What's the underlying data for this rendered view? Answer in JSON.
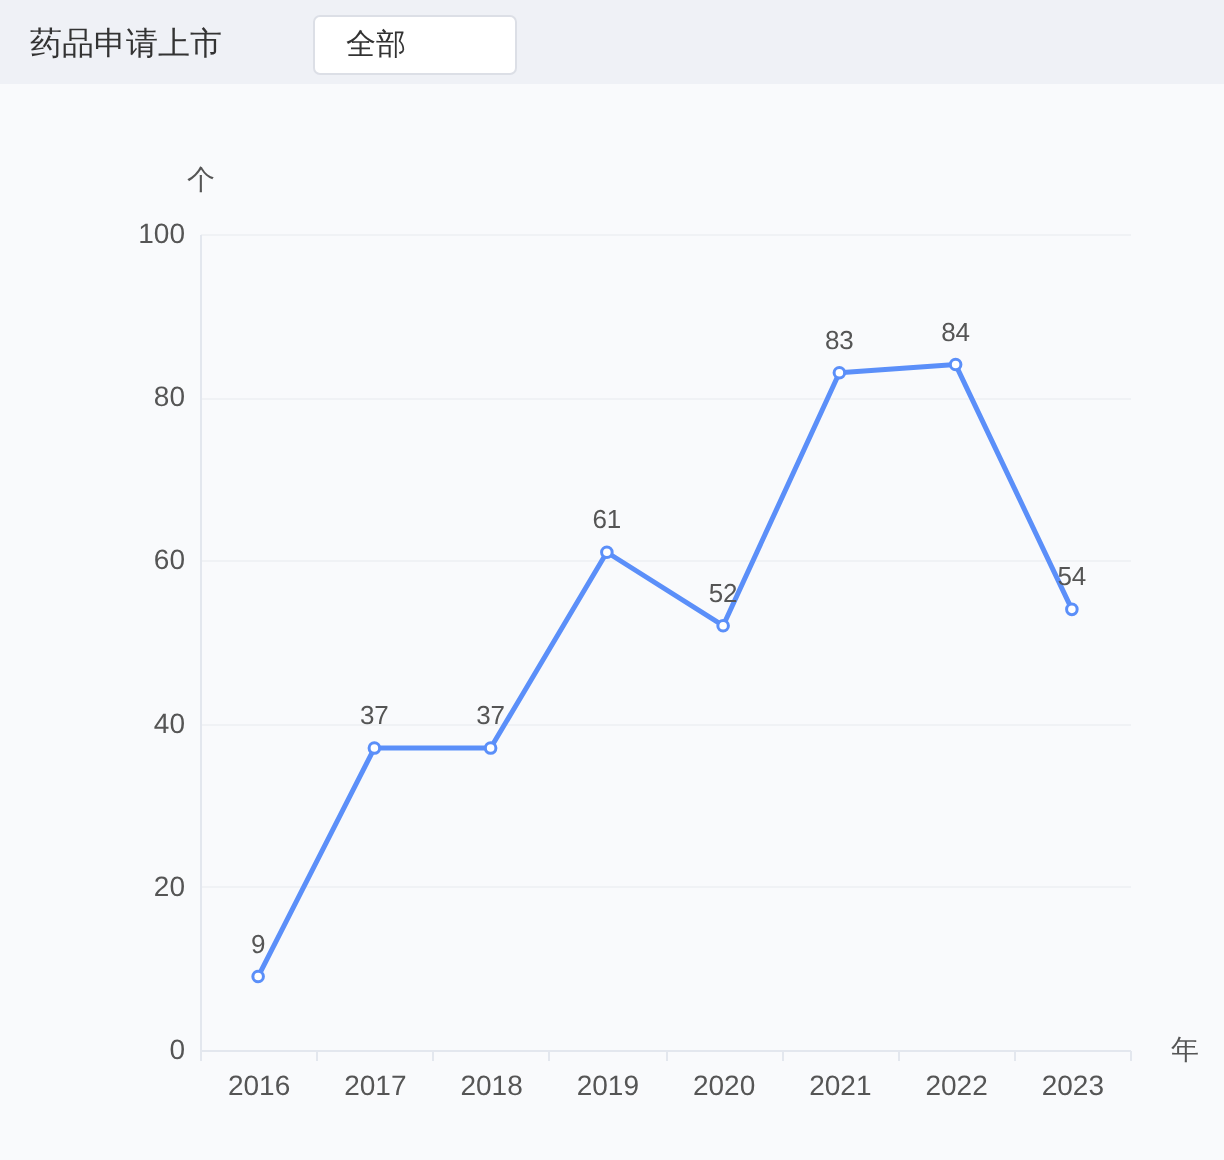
{
  "chart_data": {
    "type": "line",
    "title": "药品申请上市",
    "xlabel": "年",
    "ylabel": "个",
    "categories": [
      "2016",
      "2017",
      "2018",
      "2019",
      "2020",
      "2021",
      "2022",
      "2023"
    ],
    "series": [
      {
        "color": "#5b8ff9",
        "values": [
          9,
          37,
          37,
          61,
          52,
          83,
          84,
          54
        ]
      }
    ],
    "ylim": [
      0,
      100
    ],
    "yticks": [
      0,
      20,
      40,
      60,
      80,
      100
    ],
    "grid": "y",
    "data_labels": true,
    "marker": "circle",
    "line_style": "solid",
    "legend": false,
    "annotations": [
      "全部"
    ]
  }
}
